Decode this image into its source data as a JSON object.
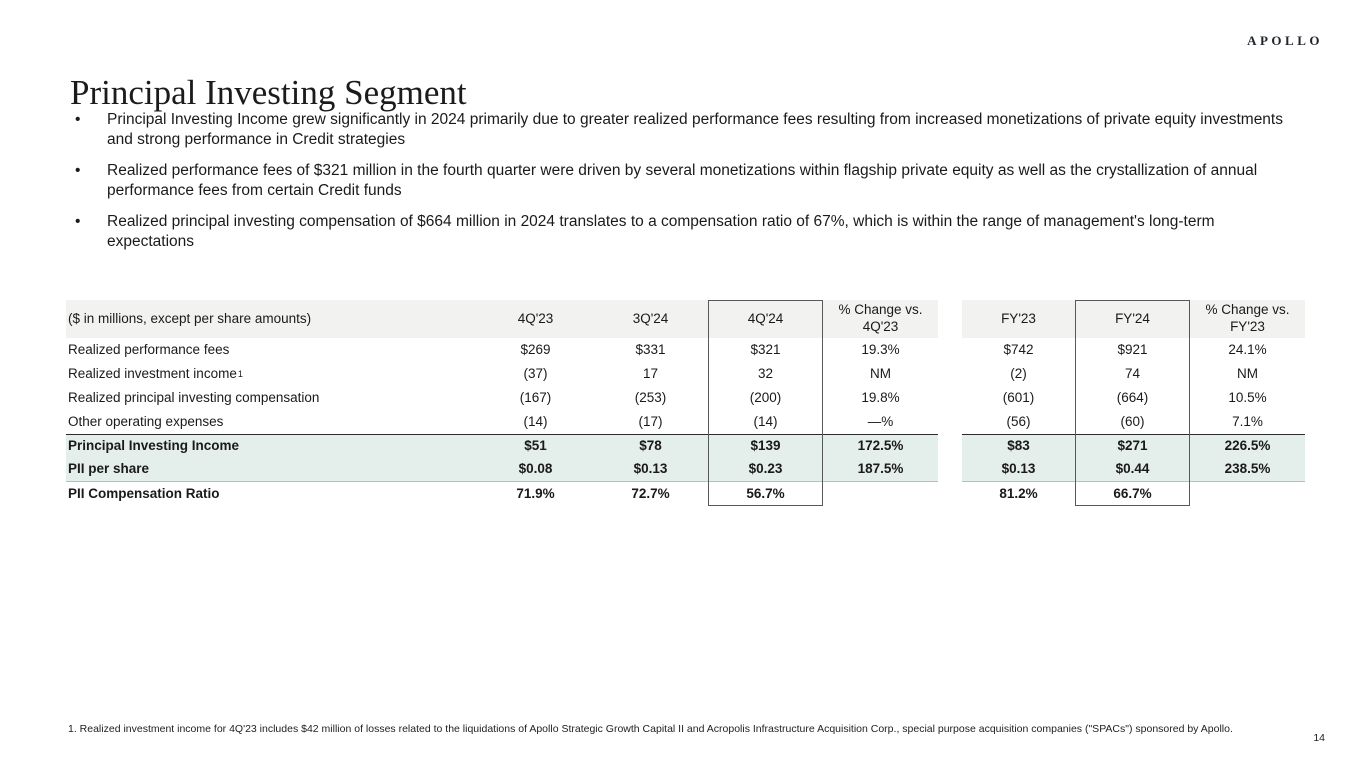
{
  "logo": "APOLLO",
  "page": {
    "title": "Principal Investing Segment",
    "number": "14"
  },
  "bullets": [
    "Principal Investing Income grew significantly in 2024 primarily due to greater realized performance fees resulting from increased monetizations of private equity investments and strong performance in Credit strategies",
    "Realized performance fees of $321 million in the fourth quarter were driven by several monetizations within flagship private equity as well as the crystallization of annual performance fees from certain Credit funds",
    "Realized principal investing compensation of $664 million in 2024 translates to a compensation ratio of 67%, which is within the range of management's long-term expectations"
  ],
  "bullet_marker": "•",
  "table": {
    "unit_label": "($ in millions, except per share amounts)",
    "columns": [
      "4Q'23",
      "3Q'24",
      "4Q'24",
      "% Change vs. 4Q'23",
      "FY'23",
      "FY'24",
      "% Change vs. FY'23"
    ],
    "boxed_columns": [
      "4Q'24",
      "FY'24"
    ],
    "rows": [
      {
        "label": "Realized performance fees",
        "sup": "",
        "style": "normal",
        "values": [
          "$269",
          "$331",
          "$321",
          "19.3%",
          "$742",
          "$921",
          "24.1%"
        ]
      },
      {
        "label": "Realized investment income",
        "sup": "1",
        "style": "normal",
        "values": [
          "(37)",
          "17",
          "32",
          "NM",
          "(2)",
          "74",
          "NM"
        ]
      },
      {
        "label": "Realized principal investing compensation",
        "sup": "",
        "style": "normal",
        "values": [
          "(167)",
          "(253)",
          "(200)",
          "19.8%",
          "(601)",
          "(664)",
          "10.5%"
        ]
      },
      {
        "label": "Other operating expenses",
        "sup": "",
        "style": "normal",
        "values": [
          "(14)",
          "(17)",
          "(14)",
          "—%",
          "(56)",
          "(60)",
          "7.1%"
        ]
      },
      {
        "label": "Principal Investing Income",
        "sup": "",
        "style": "highlight",
        "top_border": true,
        "values": [
          "$51",
          "$78",
          "$139",
          "172.5%",
          "$83",
          "$271",
          "226.5%"
        ]
      },
      {
        "label": "PII per share",
        "sup": "",
        "style": "highlight",
        "bottom_border": true,
        "values": [
          "$0.08",
          "$0.13",
          "$0.23",
          "187.5%",
          "$0.13",
          "$0.44",
          "238.5%"
        ]
      },
      {
        "label": "PII Compensation Ratio",
        "sup": "",
        "style": "bold",
        "values": [
          "71.9%",
          "72.7%",
          "56.7%",
          "",
          "81.2%",
          "66.7%",
          ""
        ]
      }
    ]
  },
  "footnote": "1. Realized investment income for 4Q'23 includes $42 million of losses related to the liquidations of Apollo Strategic Growth Capital II and Acropolis Infrastructure Acquisition Corp., special purpose acquisition companies (\"SPACs\") sponsored by Apollo.",
  "colors": {
    "header_bg": "#f2f2f0",
    "highlight_bg": "#e4eeea",
    "box_border": "#585858",
    "text": "#1a1a1a"
  }
}
